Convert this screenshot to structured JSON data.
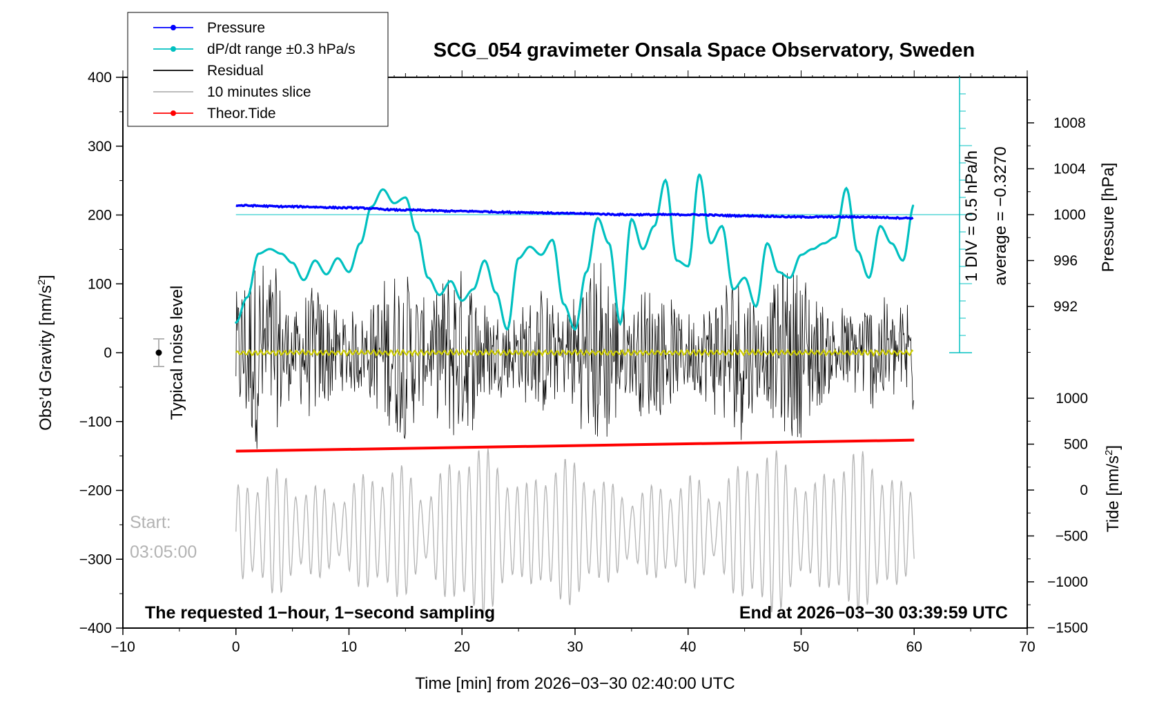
{
  "chart_data": {
    "type": "line",
    "title": "SCG_054 gravimeter Onsala Space Observatory, Sweden",
    "xlabel": "Time [min] from 2026−03−30 02:40:00 UTC",
    "ylabel_left": "Obs’d Gravity [nm/s",
    "ylabel_left_sup": "2",
    "ylabel_left_close": "]",
    "ylabel_right_top": "Pressure [hPa]",
    "ylabel_right_bottom": "Tide [nm/s",
    "ylabel_right_bottom_sup": "2",
    "ylabel_right_bottom_close": "]",
    "xlim": [
      -10,
      70
    ],
    "ylim": [
      -400,
      400
    ],
    "x_ticks": [
      "−10",
      "0",
      "10",
      "20",
      "30",
      "40",
      "50",
      "60",
      "70"
    ],
    "x_tick_values": [
      -10,
      0,
      10,
      20,
      30,
      40,
      50,
      60,
      70
    ],
    "y_ticks": [
      "400",
      "300",
      "200",
      "100",
      "0",
      "−100",
      "−200",
      "−300",
      "−400"
    ],
    "y_tick_values": [
      400,
      300,
      200,
      100,
      0,
      -100,
      -200,
      -300,
      -400
    ],
    "pressure_axis": {
      "ticks": [
        "1008",
        "1004",
        "1000",
        "996",
        "992"
      ],
      "tick_values": [
        1008,
        1004,
        1000,
        996,
        992
      ],
      "range": [
        988,
        1012
      ]
    },
    "tide_axis": {
      "ticks": [
        "1000",
        "500",
        "0",
        "−500",
        "−1000",
        "−1500"
      ],
      "tick_values": [
        1000,
        500,
        0,
        -500,
        -1000,
        -1500
      ],
      "range": [
        -1500,
        1000
      ]
    },
    "legend": {
      "placement": "top-left",
      "entries": [
        {
          "label": "Pressure",
          "color": "#0000ff",
          "marker": true
        },
        {
          "label": "dP/dt range ±0.3 hPa/s",
          "color": "#00c0c0",
          "marker": true
        },
        {
          "label": "Residual",
          "color": "#000000",
          "marker": false
        },
        {
          "label": "10 minutes slice",
          "color": "#b3b3b3",
          "marker": false
        },
        {
          "label": "Theor.Tide",
          "color": "#ff0000",
          "marker": true
        }
      ]
    },
    "annotations": {
      "noise_label": "Typical noise level",
      "noise_value": 0,
      "noise_halfrange": 20,
      "scale_text_1": "1 DIV = 0.5 hPa/h",
      "scale_text_2": "average = −0.3270",
      "footer_left": "The requested 1−hour, 1−second sampling",
      "footer_right": "End at 2026−03−30 03:39:59 UTC",
      "start_label": "Start:",
      "start_time": "03:05:00"
    },
    "series": [
      {
        "name": "Pressure",
        "color": "#0000ff",
        "x": [
          0,
          5,
          10,
          15,
          20,
          25,
          30,
          35,
          40,
          45,
          50,
          55,
          60
        ],
        "y": [
          1000.8,
          1000.7,
          1000.6,
          1000.4,
          1000.3,
          1000.2,
          1000.1,
          1000.0,
          1000.0,
          999.9,
          999.8,
          999.8,
          999.7
        ]
      },
      {
        "name": "dP/dt range ±0.3 hPa/s",
        "color": "#00c0c0",
        "x": [
          0,
          1,
          2,
          3,
          4,
          5,
          6,
          7,
          8,
          9,
          10,
          11,
          12,
          13,
          14,
          15,
          16,
          17,
          18,
          19,
          20,
          21,
          22,
          23,
          24,
          25,
          26,
          27,
          28,
          29,
          30,
          31,
          32,
          33,
          34,
          35,
          36,
          37,
          38,
          39,
          40,
          41,
          42,
          43,
          44,
          45,
          46,
          47,
          48,
          49,
          50,
          51,
          52,
          53,
          54,
          55,
          56,
          57,
          58,
          59,
          60
        ],
        "y": [
          990.6,
          992.8,
          996.6,
          997.0,
          996.6,
          995.8,
          994.3,
          996.0,
          994.8,
          996.2,
          995.0,
          997.5,
          1000.7,
          1002.2,
          1001.0,
          1001.5,
          998.5,
          994.5,
          993.0,
          994.2,
          992.5,
          993.5,
          996.0,
          993.2,
          990.0,
          996.2,
          997.2,
          996.5,
          997.8,
          992.2,
          990.0,
          995.0,
          999.7,
          997.5,
          990.5,
          999.6,
          997.0,
          999.0,
          1003.0,
          996.0,
          995.5,
          1003.5,
          997.5,
          999.0,
          993.5,
          994.5,
          992.0,
          997.5,
          995.0,
          994.5,
          996.5,
          997.0,
          997.5,
          998.0,
          1002.3,
          996.8,
          994.5,
          999.0,
          997.5,
          996.0,
          1000.9
        ]
      },
      {
        "name": "Residual",
        "color": "#000000",
        "envelope": [
          -130,
          130
        ]
      },
      {
        "name": "10 minutes slice",
        "color": "#b3b3b3",
        "y_range": [
          -370,
          -150
        ]
      },
      {
        "name": "Theor.Tide",
        "color": "#ff0000",
        "x": [
          0,
          60
        ],
        "y": [
          -143,
          -127
        ]
      }
    ]
  }
}
